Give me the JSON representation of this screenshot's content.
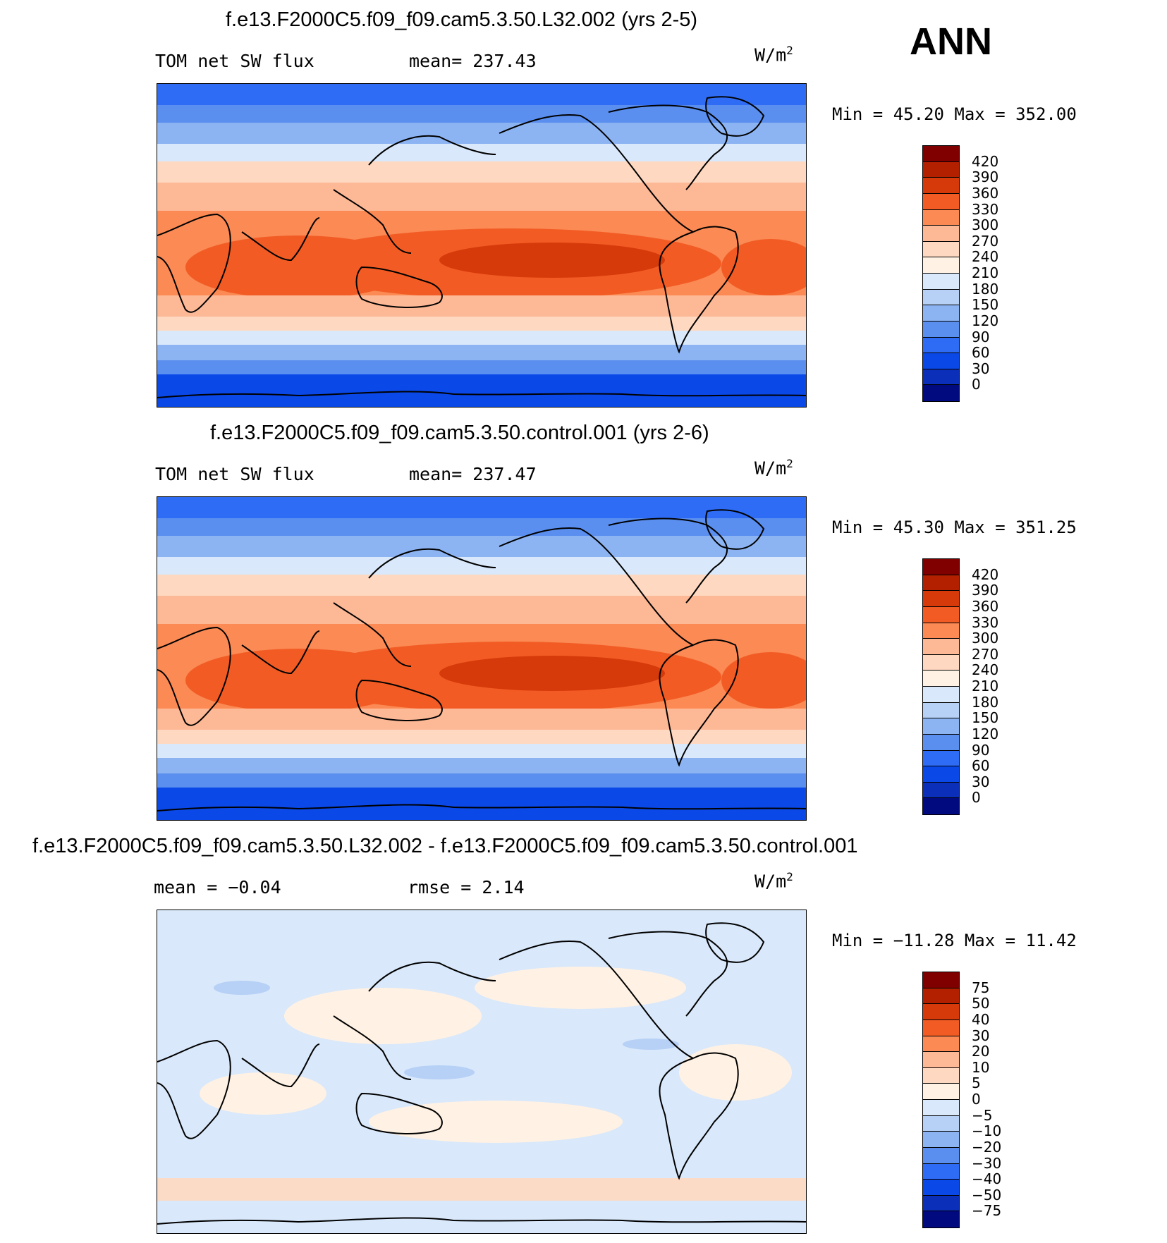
{
  "season": "ANN",
  "units": {
    "base": "W/m",
    "exp": "2"
  },
  "panels": [
    {
      "title": "f.e13.F2000C5.f09_f09.cam5.3.50.L32.002 (yrs 2-5)",
      "left_label": "TOM net SW flux",
      "right_label": "mean=  237.43",
      "minmax": "Min =   45.20  Max  =  352.00",
      "levels": [
        "420",
        "390",
        "360",
        "330",
        "300",
        "270",
        "240",
        "210",
        "180",
        "150",
        "120",
        "90",
        "60",
        "30",
        "0"
      ]
    },
    {
      "title": "f.e13.F2000C5.f09_f09.cam5.3.50.control.001 (yrs 2-6)",
      "left_label": "TOM net SW flux",
      "right_label": "mean=  237.47",
      "minmax": "Min =   45.30  Max  =  351.25",
      "levels": [
        "420",
        "390",
        "360",
        "330",
        "300",
        "270",
        "240",
        "210",
        "180",
        "150",
        "120",
        "90",
        "60",
        "30",
        "0"
      ]
    },
    {
      "title": "f.e13.F2000C5.f09_f09.cam5.3.50.L32.002 - f.e13.F2000C5.f09_f09.cam5.3.50.control.001",
      "left_label": "mean =   −0.04",
      "right_label": "rmse =    2.14",
      "minmax": "Min = −11.28  Max =   11.42",
      "levels": [
        "75",
        "50",
        "40",
        "30",
        "20",
        "10",
        "5",
        "0",
        "−5",
        "−10",
        "−20",
        "−30",
        "−40",
        "−50",
        "−75"
      ]
    }
  ],
  "colors": {
    "abs_scale": [
      "#800000",
      "#b22000",
      "#d63a0a",
      "#f25c24",
      "#fb8a55",
      "#fdb896",
      "#fed8c0",
      "#fff2e4",
      "#d9e8fa",
      "#b6d0f6",
      "#8db4f2",
      "#5a8ff0",
      "#2e6cf5",
      "#0a48e8",
      "#0b2fb8",
      "#020a80"
    ],
    "diff_scale": [
      "#800000",
      "#b22000",
      "#d63a0a",
      "#f25c24",
      "#fb8a55",
      "#fdb896",
      "#fed8c0",
      "#fff2e4",
      "#d9e8fa",
      "#b6d0f6",
      "#8db4f2",
      "#5a8ff0",
      "#2e6cf5",
      "#0a48e8",
      "#0b2fb8",
      "#020a80"
    ]
  }
}
